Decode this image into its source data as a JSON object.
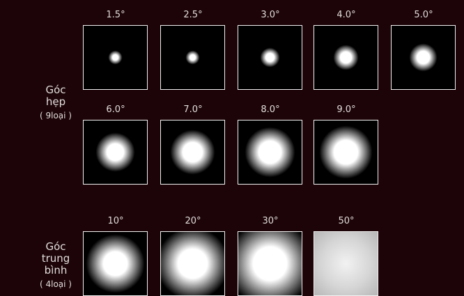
{
  "groups": [
    {
      "title_lines": [
        "Góc",
        "hẹp"
      ],
      "count": "( 9loại )",
      "tiles": [
        "1.5°",
        "2.5°",
        "3.0°",
        "4.0°",
        "5.0°",
        "6.0°",
        "7.0°",
        "8.0°",
        "9.0°"
      ]
    },
    {
      "title_lines": [
        "Góc",
        "trung",
        "bình"
      ],
      "count": "( 4loại )",
      "tiles": [
        "10°",
        "20°",
        "30°",
        "50°"
      ]
    }
  ]
}
